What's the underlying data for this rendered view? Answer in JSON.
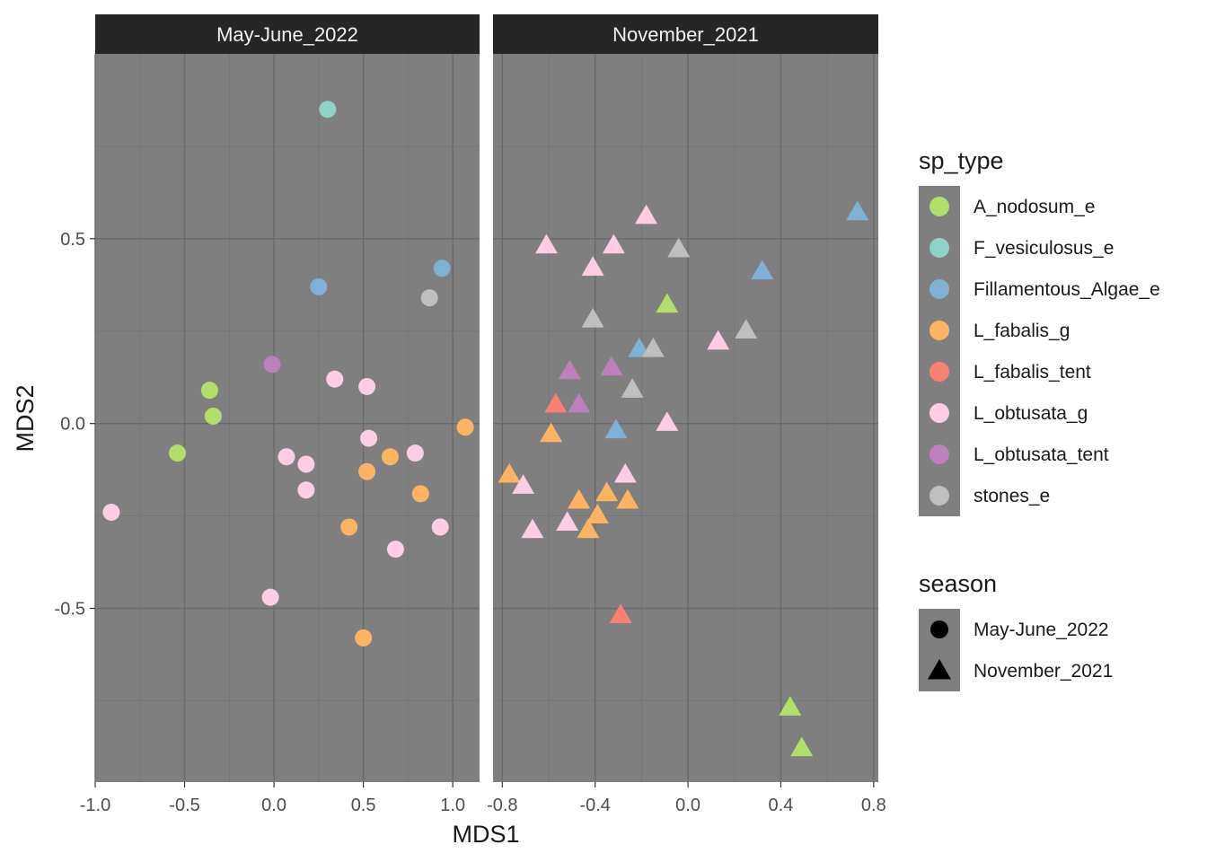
{
  "chart_data": {
    "type": "scatter",
    "xlabel": "MDS1",
    "ylabel": "MDS2",
    "ylim": [
      -0.97,
      1.0
    ],
    "y_ticks": [
      "0.5",
      "0.0",
      "-0.5"
    ],
    "y_tick_values": [
      0.5,
      0.0,
      -0.5
    ],
    "colors": {
      "A_nodosum_e": "#b2df6a",
      "F_vesiculosus_e": "#8dd3c7",
      "Fillamentous_Algae_e": "#80b1d3",
      "L_fabalis_g": "#fdb462",
      "L_fabalis_tent": "#fb8072",
      "L_obtusata_g": "#fccde5",
      "L_obtusata_tent": "#bc80bd",
      "stones_e": "#bfbfbf"
    },
    "panels": [
      {
        "strip": "May-June_2022",
        "shape": "circle",
        "xlim": [
          -1.0,
          1.15
        ],
        "x_ticks": [
          "-1.0",
          "-0.5",
          "0.0",
          "0.5",
          "1.0"
        ],
        "x_tick_values": [
          -1.0,
          -0.5,
          0.0,
          0.5,
          1.0
        ],
        "points": [
          {
            "x": 0.3,
            "y": 0.85,
            "g": "F_vesiculosus_e"
          },
          {
            "x": 0.94,
            "y": 0.42,
            "g": "Fillamentous_Algae_e"
          },
          {
            "x": 0.25,
            "y": 0.37,
            "g": "Fillamentous_Algae_e"
          },
          {
            "x": 0.87,
            "y": 0.34,
            "g": "stones_e"
          },
          {
            "x": -0.01,
            "y": 0.16,
            "g": "L_obtusata_tent"
          },
          {
            "x": 0.34,
            "y": 0.12,
            "g": "L_obtusata_g"
          },
          {
            "x": 0.52,
            "y": 0.1,
            "g": "L_obtusata_g"
          },
          {
            "x": -0.36,
            "y": 0.09,
            "g": "A_nodosum_e"
          },
          {
            "x": -0.34,
            "y": 0.02,
            "g": "A_nodosum_e"
          },
          {
            "x": 1.07,
            "y": -0.01,
            "g": "L_fabalis_g"
          },
          {
            "x": 0.53,
            "y": -0.04,
            "g": "L_obtusata_g"
          },
          {
            "x": -0.54,
            "y": -0.08,
            "g": "A_nodosum_e"
          },
          {
            "x": 0.79,
            "y": -0.08,
            "g": "L_obtusata_g"
          },
          {
            "x": 0.65,
            "y": -0.09,
            "g": "L_fabalis_g"
          },
          {
            "x": 0.07,
            "y": -0.09,
            "g": "L_obtusata_g"
          },
          {
            "x": 0.18,
            "y": -0.11,
            "g": "L_obtusata_g"
          },
          {
            "x": 0.52,
            "y": -0.13,
            "g": "L_fabalis_g"
          },
          {
            "x": 0.18,
            "y": -0.18,
            "g": "L_obtusata_g"
          },
          {
            "x": 0.82,
            "y": -0.19,
            "g": "L_fabalis_g"
          },
          {
            "x": -0.91,
            "y": -0.24,
            "g": "L_obtusata_g"
          },
          {
            "x": 0.42,
            "y": -0.28,
            "g": "L_fabalis_g"
          },
          {
            "x": 0.93,
            "y": -0.28,
            "g": "L_obtusata_g"
          },
          {
            "x": 0.68,
            "y": -0.34,
            "g": "L_obtusata_g"
          },
          {
            "x": -0.02,
            "y": -0.47,
            "g": "L_obtusata_g"
          },
          {
            "x": 0.5,
            "y": -0.58,
            "g": "L_fabalis_g"
          }
        ]
      },
      {
        "strip": "November_2021",
        "shape": "triangle",
        "xlim": [
          -0.84,
          0.82
        ],
        "x_ticks": [
          "-0.8",
          "-0.4",
          "0.0",
          "0.4",
          "0.8"
        ],
        "x_tick_values": [
          -0.8,
          -0.4,
          0.0,
          0.4,
          0.8
        ],
        "points": [
          {
            "x": 0.73,
            "y": 0.57,
            "g": "Fillamentous_Algae_e"
          },
          {
            "x": -0.18,
            "y": 0.56,
            "g": "L_obtusata_g"
          },
          {
            "x": -0.61,
            "y": 0.48,
            "g": "L_obtusata_g"
          },
          {
            "x": -0.32,
            "y": 0.48,
            "g": "L_obtusata_g"
          },
          {
            "x": -0.04,
            "y": 0.47,
            "g": "stones_e"
          },
          {
            "x": -0.41,
            "y": 0.42,
            "g": "L_obtusata_g"
          },
          {
            "x": 0.32,
            "y": 0.41,
            "g": "Fillamentous_Algae_e"
          },
          {
            "x": -0.09,
            "y": 0.32,
            "g": "A_nodosum_e"
          },
          {
            "x": -0.41,
            "y": 0.28,
            "g": "stones_e"
          },
          {
            "x": 0.25,
            "y": 0.25,
            "g": "stones_e"
          },
          {
            "x": 0.13,
            "y": 0.22,
            "g": "L_obtusata_g"
          },
          {
            "x": -0.21,
            "y": 0.2,
            "g": "Fillamentous_Algae_e"
          },
          {
            "x": -0.15,
            "y": 0.2,
            "g": "stones_e"
          },
          {
            "x": -0.33,
            "y": 0.15,
            "g": "L_obtusata_tent"
          },
          {
            "x": -0.51,
            "y": 0.14,
            "g": "L_obtusata_tent"
          },
          {
            "x": -0.24,
            "y": 0.09,
            "g": "stones_e"
          },
          {
            "x": -0.57,
            "y": 0.05,
            "g": "L_fabalis_tent"
          },
          {
            "x": -0.47,
            "y": 0.05,
            "g": "L_obtusata_tent"
          },
          {
            "x": -0.09,
            "y": 0.0,
            "g": "L_obtusata_g"
          },
          {
            "x": -0.31,
            "y": -0.02,
            "g": "Fillamentous_Algae_e"
          },
          {
            "x": -0.59,
            "y": -0.03,
            "g": "L_fabalis_g"
          },
          {
            "x": -0.27,
            "y": -0.14,
            "g": "L_obtusata_g"
          },
          {
            "x": -0.77,
            "y": -0.14,
            "g": "L_fabalis_g"
          },
          {
            "x": -0.71,
            "y": -0.17,
            "g": "L_obtusata_g"
          },
          {
            "x": -0.35,
            "y": -0.19,
            "g": "L_fabalis_g"
          },
          {
            "x": -0.47,
            "y": -0.21,
            "g": "L_fabalis_g"
          },
          {
            "x": -0.26,
            "y": -0.21,
            "g": "L_fabalis_g"
          },
          {
            "x": -0.39,
            "y": -0.25,
            "g": "L_fabalis_g"
          },
          {
            "x": -0.52,
            "y": -0.27,
            "g": "L_obtusata_g"
          },
          {
            "x": -0.67,
            "y": -0.29,
            "g": "L_obtusata_g"
          },
          {
            "x": -0.43,
            "y": -0.29,
            "g": "L_fabalis_g"
          },
          {
            "x": -0.29,
            "y": -0.52,
            "g": "L_fabalis_tent"
          },
          {
            "x": 0.44,
            "y": -0.77,
            "g": "A_nodosum_e"
          },
          {
            "x": 0.49,
            "y": -0.88,
            "g": "A_nodosum_e"
          }
        ]
      }
    ],
    "legend": {
      "placement": "right",
      "sp_type": {
        "title": "sp_type",
        "items": [
          "A_nodosum_e",
          "F_vesiculosus_e",
          "Fillamentous_Algae_e",
          "L_fabalis_g",
          "L_fabalis_tent",
          "L_obtusata_g",
          "L_obtusata_tent",
          "stones_e"
        ]
      },
      "season": {
        "title": "season",
        "items": [
          {
            "label": "May-June_2022",
            "shape": "circle"
          },
          {
            "label": "November_2021",
            "shape": "triangle"
          }
        ]
      }
    },
    "theme": {
      "panel_bg": "#7f7f7f",
      "grid_major": "#6a6a6a",
      "grid_minor": "#747474",
      "strip_bg": "#262626",
      "legend_key_bg": "#7f7f7f"
    }
  }
}
